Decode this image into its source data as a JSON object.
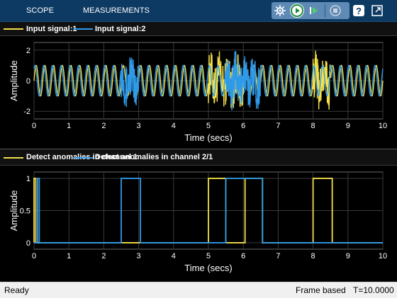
{
  "toolstrip": {
    "tabs": [
      {
        "label": "SCOPE"
      },
      {
        "label": "MEASUREMENTS"
      }
    ],
    "buttons": [
      "settings-icon",
      "run-icon",
      "step-forward-icon",
      "stop-icon",
      "help-icon",
      "undock-icon"
    ]
  },
  "plot1": {
    "legend": [
      {
        "label": "Input signal:1",
        "color": "#f4e04a"
      },
      {
        "label": "Input signal:2",
        "color": "#2f9ae8"
      }
    ],
    "xlabel": "Time (secs)",
    "ylabel": "Amplitude",
    "xticks": [
      "0",
      "1",
      "2",
      "3",
      "4",
      "5",
      "6",
      "7",
      "8",
      "9",
      "10"
    ],
    "yticks": [
      "2",
      "0",
      "-2"
    ]
  },
  "plot2": {
    "legend": [
      {
        "label": "Detect anomalies in channel 1",
        "color": "#f4e04a"
      },
      {
        "label": "Detect anomalies in channel 2/1",
        "color": "#2f9ae8"
      }
    ],
    "xlabel": "Time (secs)",
    "ylabel": "Amplitude",
    "xticks": [
      "0",
      "1",
      "2",
      "3",
      "4",
      "5",
      "6",
      "7",
      "8",
      "9",
      "10"
    ],
    "yticks": [
      "1",
      "0.5",
      "0"
    ]
  },
  "chart_data": [
    {
      "type": "line",
      "title": "",
      "xlabel": "Time (secs)",
      "ylabel": "Amplitude",
      "xlim": [
        0,
        10
      ],
      "ylim": [
        -2.5,
        2.5
      ],
      "grid": true,
      "legend_position": "top",
      "series": [
        {
          "name": "Input signal:1",
          "color": "#f4e04a",
          "frequency_hz": 4,
          "amplitude": 1,
          "anomaly_intervals": [
            [
              5.0,
              6.0
            ],
            [
              8.0,
              8.5
            ]
          ]
        },
        {
          "name": "Input signal:2",
          "color": "#2f9ae8",
          "frequency_hz": 4,
          "amplitude": 1,
          "anomaly_intervals": [
            [
              2.5,
              3.0
            ],
            [
              5.5,
              6.5
            ]
          ]
        }
      ]
    },
    {
      "type": "line",
      "title": "",
      "xlabel": "Time (secs)",
      "ylabel": "Amplitude",
      "xlim": [
        0,
        10
      ],
      "ylim": [
        -0.1,
        1.1
      ],
      "grid": true,
      "legend_position": "top",
      "series": [
        {
          "name": "Detect anomalies in channel 1",
          "color": "#f4e04a",
          "points": [
            [
              0,
              0
            ],
            [
              0,
              1
            ],
            [
              0.05,
              1
            ],
            [
              0.05,
              0
            ],
            [
              5.0,
              0
            ],
            [
              5.0,
              1
            ],
            [
              5.5,
              1
            ],
            [
              5.5,
              0
            ],
            [
              6.05,
              0
            ],
            [
              6.05,
              1
            ],
            [
              6.55,
              1
            ],
            [
              6.55,
              0
            ],
            [
              8.0,
              0
            ],
            [
              8.0,
              1
            ],
            [
              8.55,
              1
            ],
            [
              8.55,
              0
            ],
            [
              10,
              0
            ]
          ]
        },
        {
          "name": "Detect anomalies in channel 2/1",
          "color": "#2f9ae8",
          "points": [
            [
              0,
              0
            ],
            [
              0.1,
              0
            ],
            [
              0.1,
              1
            ],
            [
              0.15,
              1
            ],
            [
              0.15,
              0
            ],
            [
              2.5,
              0
            ],
            [
              2.5,
              1
            ],
            [
              3.05,
              1
            ],
            [
              3.05,
              0
            ],
            [
              5.5,
              0
            ],
            [
              5.5,
              1
            ],
            [
              6.55,
              1
            ],
            [
              6.55,
              0
            ],
            [
              10,
              0
            ]
          ]
        }
      ]
    }
  ],
  "status": {
    "left": "Ready",
    "mode": "Frame based",
    "time": "T=10.0000"
  }
}
